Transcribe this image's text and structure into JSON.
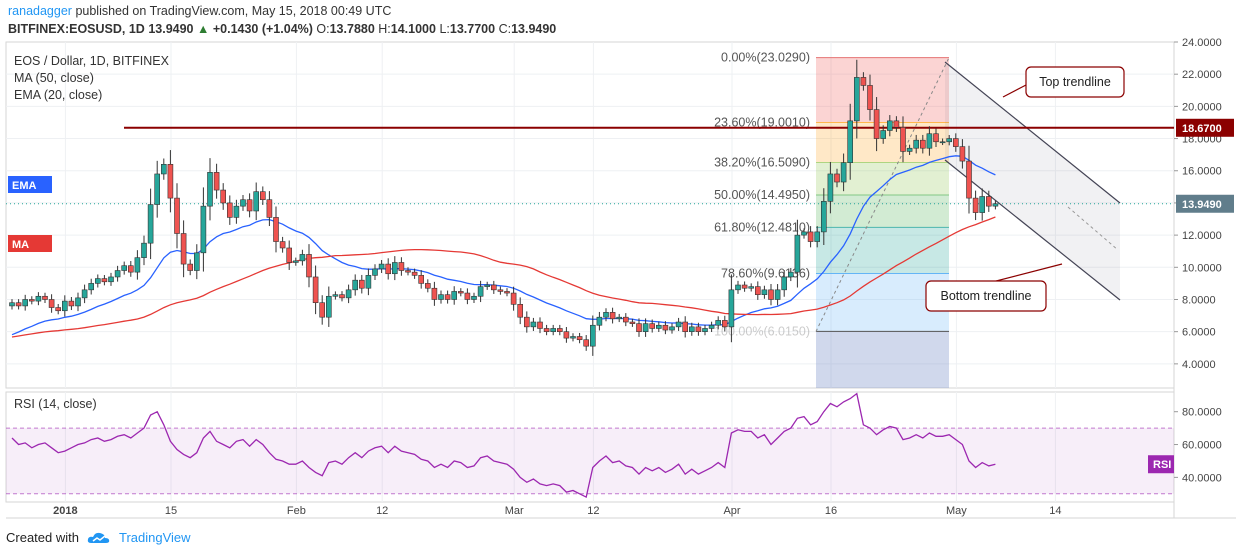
{
  "header": {
    "author": "ranadagger",
    "published_text": "published on TradingView.com, May 15, 2018 00:49 UTC",
    "symbol_line": "BITFINEX:EOSUSD, 1D",
    "price": "13.9490",
    "change": "+0.1430 (+1.04%)",
    "ohlc": {
      "o_label": "O:",
      "o": "13.7880",
      "h_label": "H:",
      "h": "14.1000",
      "l_label": "L:",
      "l": "13.7700",
      "c_label": "C:",
      "c": "13.9490"
    }
  },
  "legend": {
    "title": "EOS / Dollar, 1D, BITFINEX",
    "ma": "MA (50, close)",
    "ema": "EMA (20, close)",
    "ema_tag": "EMA",
    "ma_tag": "MA"
  },
  "rsi_pane": {
    "label": "RSI (14, close)",
    "tag": "RSI",
    "levels": [
      "80.0000",
      "60.0000",
      "40.0000"
    ]
  },
  "footer": {
    "created_with": "Created with",
    "brand": "TradingView"
  },
  "colors": {
    "up": "#26a69a",
    "down": "#ef5350",
    "ema": "#2962ff",
    "ma": "#e53935",
    "rsi": "#9c27b0",
    "horizontal_line": "#8b0000"
  },
  "chart_data": [
    {
      "type": "candlestick",
      "title": "EOS / Dollar, 1D, BITFINEX",
      "x_ticks": [
        "2018",
        "15",
        "Feb",
        "12",
        "Mar",
        "12",
        "Apr",
        "16",
        "May",
        "14"
      ],
      "y_ticks": [
        "24.0000",
        "22.0000",
        "20.0000",
        "18.0000",
        "16.0000",
        "14.0000",
        "12.0000",
        "10.0000",
        "8.0000",
        "6.0000",
        "4.0000"
      ],
      "ylim": [
        2.5,
        24.0
      ],
      "last_price_label": "13.9490",
      "horizontal_level": {
        "value": 18.67,
        "label": "18.6700"
      },
      "fibonacci": [
        {
          "label": "0.00%(23.0290)",
          "value": 23.029
        },
        {
          "label": "23.60%(19.0010)",
          "value": 19.001
        },
        {
          "label": "38.20%(16.5090)",
          "value": 16.509
        },
        {
          "label": "50.00%(14.4950)",
          "value": 14.495
        },
        {
          "label": "61.80%(12.4810)",
          "value": 12.481
        },
        {
          "label": "78.60%(9.6136)",
          "value": 9.6136
        }
      ],
      "fib_hidden_label": "100.00%(6.0150)",
      "fib_bottom_value": 6.015,
      "annotations": [
        {
          "text": "Top trendline"
        },
        {
          "text": "Bottom trendline"
        }
      ],
      "close": [
        7.8,
        7.6,
        8.0,
        7.9,
        8.2,
        8.0,
        7.5,
        7.3,
        7.9,
        7.6,
        8.1,
        8.6,
        9.0,
        9.3,
        9.1,
        9.4,
        9.8,
        10.1,
        9.7,
        10.6,
        11.5,
        13.9,
        15.8,
        16.4,
        14.3,
        12.1,
        10.2,
        9.8,
        10.9,
        13.8,
        15.9,
        14.8,
        14.0,
        13.1,
        13.8,
        14.2,
        13.5,
        14.7,
        14.2,
        13.1,
        11.6,
        11.2,
        10.3,
        10.4,
        10.8,
        9.4,
        7.8,
        6.9,
        8.2,
        8.3,
        8.1,
        8.6,
        9.2,
        8.7,
        9.5,
        9.9,
        10.2,
        9.6,
        10.3,
        9.8,
        9.7,
        9.5,
        9.0,
        8.7,
        8.0,
        8.3,
        8.0,
        8.5,
        8.4,
        8.0,
        8.2,
        8.8,
        8.9,
        8.6,
        8.5,
        8.4,
        7.7,
        6.9,
        6.3,
        6.6,
        6.2,
        6.0,
        6.2,
        6.0,
        5.6,
        5.7,
        5.5,
        5.1,
        6.4,
        6.9,
        7.2,
        6.8,
        6.9,
        6.6,
        6.5,
        6.0,
        6.5,
        6.2,
        6.4,
        6.1,
        6.3,
        6.6,
        6.0,
        6.3,
        6.0,
        6.2,
        6.4,
        6.7,
        6.3,
        8.6,
        8.9,
        8.7,
        8.8,
        8.3,
        8.6,
        8.0,
        8.6,
        9.4,
        9.7,
        12.0,
        12.2,
        11.6,
        12.2,
        14.1,
        15.8,
        15.3,
        16.5,
        19.1,
        21.8,
        21.3,
        19.8,
        18.0,
        18.5,
        19.1,
        18.7,
        17.2,
        17.4,
        17.9,
        17.4,
        18.3,
        17.8,
        17.8,
        18.0,
        17.5,
        16.6,
        14.3,
        13.4,
        14.4,
        13.8,
        13.95
      ],
      "series": [
        {
          "name": "EMA (20, close)"
        },
        {
          "name": "MA (50, close)"
        }
      ]
    },
    {
      "type": "line",
      "title": "RSI (14, close)",
      "y_ticks": [
        "80.0000",
        "60.0000",
        "40.0000"
      ],
      "ylim": [
        25,
        92
      ],
      "band": [
        30,
        70
      ],
      "values": [
        64,
        60,
        61,
        58,
        60,
        61,
        58,
        55,
        56,
        58,
        60,
        61,
        63,
        64,
        62,
        63,
        65,
        66,
        64,
        67,
        70,
        78,
        80,
        72,
        62,
        57,
        54,
        52,
        55,
        64,
        68,
        62,
        60,
        58,
        62,
        63,
        59,
        63,
        60,
        55,
        51,
        50,
        48,
        48,
        50,
        46,
        43,
        41,
        49,
        50,
        48,
        52,
        55,
        52,
        56,
        58,
        59,
        55,
        59,
        56,
        55,
        54,
        51,
        50,
        46,
        48,
        46,
        50,
        49,
        46,
        47,
        52,
        53,
        50,
        49,
        48,
        45,
        40,
        37,
        39,
        36,
        35,
        36,
        35,
        31,
        32,
        30,
        28,
        46,
        50,
        53,
        49,
        50,
        47,
        46,
        42,
        46,
        44,
        46,
        43,
        45,
        48,
        42,
        45,
        42,
        44,
        46,
        49,
        46,
        67,
        69,
        68,
        68,
        64,
        66,
        60,
        64,
        68,
        70,
        76,
        77,
        72,
        74,
        80,
        85,
        83,
        86,
        88,
        91,
        72,
        70,
        66,
        69,
        71,
        70,
        63,
        64,
        66,
        64,
        67,
        65,
        65,
        66,
        63,
        60,
        50,
        46,
        49,
        47,
        48
      ]
    }
  ]
}
